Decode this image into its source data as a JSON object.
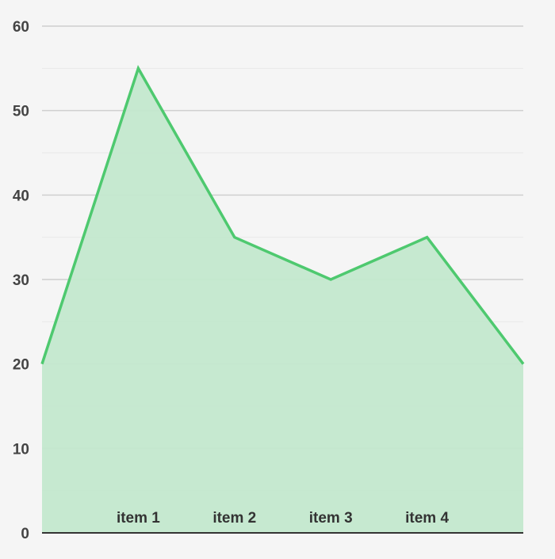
{
  "chart_data": {
    "type": "area",
    "title": "",
    "xlabel": "",
    "ylabel": "",
    "x": [
      "",
      "item 1",
      "item 2",
      "item 3",
      "item 4",
      ""
    ],
    "series": [
      {
        "values": [
          20,
          55,
          35,
          30,
          35,
          20
        ]
      }
    ],
    "ylim": [
      0,
      60
    ],
    "y_ticks": [
      "0",
      "10",
      "20",
      "30",
      "40",
      "50",
      "60"
    ],
    "x_tick_labels": [
      "item 1",
      "item 2",
      "item 3",
      "item 4"
    ],
    "grid": true,
    "minor_grid": true,
    "legend": "none",
    "colors": {
      "line": "#4ec96f",
      "fill": "#c3e8cd",
      "grid_major": "#cfcfcf",
      "grid_minor": "#e8e8e8",
      "axis": "#333333",
      "background": "#f5f5f5"
    }
  }
}
